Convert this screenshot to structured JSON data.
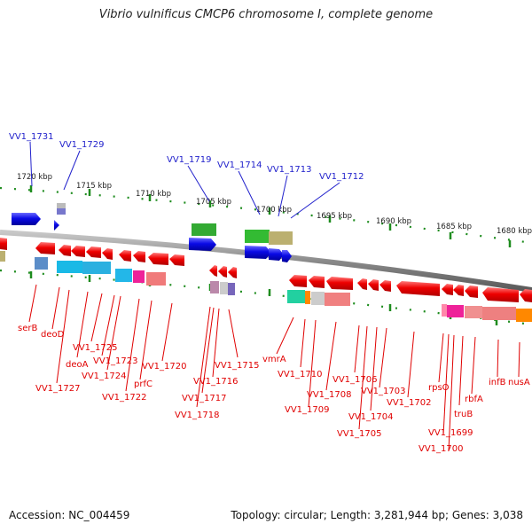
{
  "title": "Vibrio vulnificus CMCP6 chromosome I, complete genome",
  "footer": {
    "accession": "Accession: NC_004459",
    "topology": "Topology: circular; Length: 3,281,944 bp; Genes: 3,038"
  },
  "scale_labels": [
    "1720 kbp",
    "1715 kbp",
    "1710 kbp",
    "1705 kbp",
    "1700 kbp",
    "1695 kbp",
    "1690 kbp",
    "1685 kbp",
    "1680 kbp"
  ],
  "top_labels": [
    "VV1_1731",
    "VV1_1729",
    "VV1_1719",
    "VV1_1714",
    "VV1_1713",
    "VV1_1712"
  ],
  "bottom_labels": [
    "serB",
    "deoD",
    "deoA",
    "VV1_1727",
    "VV1_1725",
    "VV1_1723",
    "VV1_1724",
    "VV1_1722",
    "prfC",
    "VV1_1720",
    "VV1_1716",
    "VV1_1717",
    "VV1_1718",
    "VV1_1715",
    "vmrA",
    "VV1_1710",
    "VV1_1708",
    "VV1_1709",
    "VV1_1706",
    "VV1_1703",
    "VV1_1704",
    "VV1_1705",
    "VV1_1702",
    "rpsO",
    "truB",
    "VV1_1699",
    "VV1_1700",
    "rbfA",
    "infB",
    "nusA"
  ],
  "colors": {
    "forward_gene": "#0a0ae6",
    "reverse_gene": "#ee0000",
    "label_blue": "#2222cc",
    "label_red": "#e00000",
    "backbone": "#8a8a8a",
    "tick": "#1e8c1e"
  }
}
